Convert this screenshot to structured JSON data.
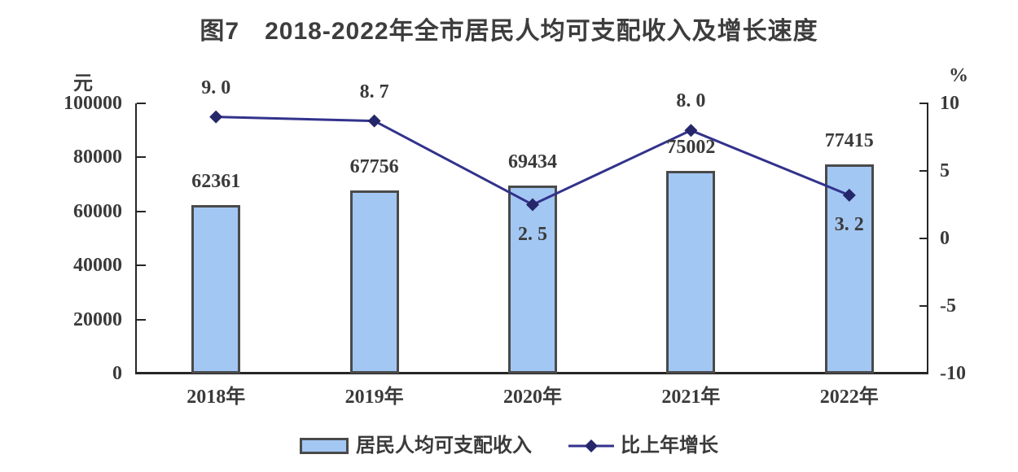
{
  "title": "图7　2018-2022年全市居民人均可支配收入及增长速度",
  "chart_data": {
    "type": "bar+line",
    "title": "图7　2018-2022年全市居民人均可支配收入及增长速度",
    "categories": [
      "2018年",
      "2019年",
      "2020年",
      "2021年",
      "2022年"
    ],
    "series": [
      {
        "name": "居民人均可支配收入",
        "type": "bar",
        "axis": "left",
        "values": [
          62361,
          67756,
          69434,
          75002,
          77415
        ],
        "labels": [
          "62361",
          "67756",
          "69434",
          "75002",
          "77415"
        ],
        "color": "#a3c7f3",
        "border_color": "#4a4a4a"
      },
      {
        "name": "比上年增长",
        "type": "line",
        "axis": "right",
        "values": [
          9.0,
          8.7,
          2.5,
          8.0,
          3.2
        ],
        "labels": [
          "9. 0",
          "8. 7",
          "2. 5",
          "8. 0",
          "3. 2"
        ],
        "label_positions": [
          "above",
          "above",
          "below",
          "above",
          "below"
        ],
        "color": "#32328c",
        "marker_color": "#26266b",
        "marker": "diamond"
      }
    ],
    "left_axis": {
      "unit": "元",
      "min": 0,
      "max": 100000,
      "step": 20000,
      "tick_labels": [
        "0",
        "20000",
        "40000",
        "60000",
        "80000",
        "100000"
      ]
    },
    "right_axis": {
      "unit": "%",
      "min": -10,
      "max": 10,
      "step": 5,
      "tick_labels": [
        "-10",
        "-5",
        "0",
        "5",
        "10"
      ]
    },
    "grid": false,
    "legend_position": "bottom",
    "legend": [
      "居民人均可支配收入",
      "比上年增长"
    ]
  }
}
